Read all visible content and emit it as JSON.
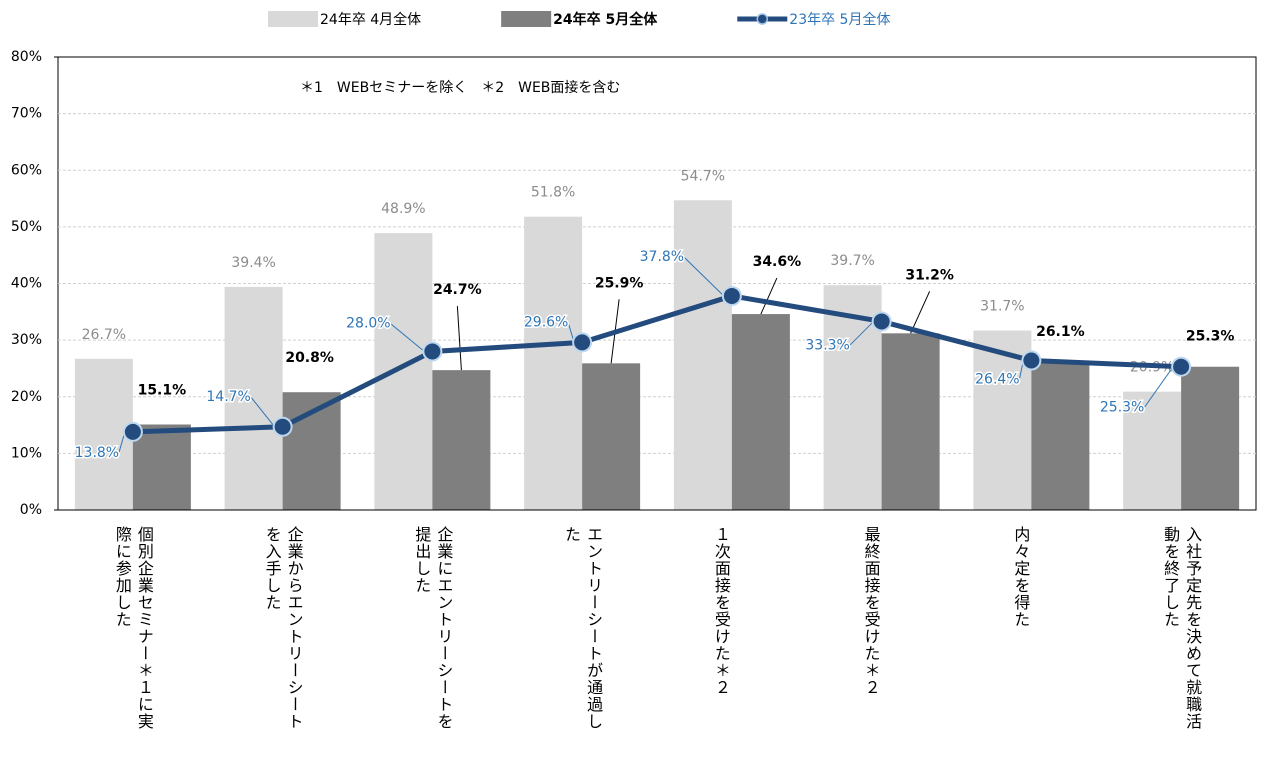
{
  "chart_data": {
    "type": "bar_line",
    "annotation": "＊1　WEBセミナーを除く　＊2　WEB面接を含む",
    "categories": [
      "個別企業セミナー＊１に実際に参加した",
      "企業からエントリーシートを入手した",
      "企業にエントリーシートを提出した",
      "エントリーシートが通過した",
      "１次面接を受けた＊２",
      "最終面接を受けた＊２",
      "内々定を得た",
      "入社予定先を決めて就職活動を終了した"
    ],
    "series": [
      {
        "name": "24年卒 4月全体",
        "type": "bar",
        "color": "#d9d9d9",
        "label_color": "#8c8c8c",
        "values": [
          26.7,
          39.4,
          48.9,
          51.8,
          54.7,
          39.7,
          31.7,
          20.9
        ],
        "value_labels": [
          "26.7%",
          "39.4%",
          "48.9%",
          "51.8%",
          "54.7%",
          "39.7%",
          "31.7%",
          "20.9%"
        ]
      },
      {
        "name": "24年卒 5月全体",
        "type": "bar",
        "color": "#7f7f7f",
        "label_color": "#000000",
        "values": [
          15.1,
          20.8,
          24.7,
          25.9,
          34.6,
          31.2,
          26.1,
          25.3
        ],
        "value_labels": [
          "15.1%",
          "20.8%",
          "24.7%",
          "25.9%",
          "34.6%",
          "31.2%",
          "26.1%",
          "25.3%"
        ]
      },
      {
        "name": "23年卒 5月全体",
        "type": "line",
        "color": "#244b7d",
        "label_color": "#2e75b6",
        "values": [
          13.8,
          14.7,
          28.0,
          29.6,
          37.8,
          33.3,
          26.4,
          25.3
        ],
        "value_labels": [
          "13.8%",
          "14.7%",
          "28.0%",
          "29.6%",
          "37.8%",
          "33.3%",
          "26.4%",
          "25.3%"
        ]
      }
    ],
    "ylim": [
      0,
      80
    ],
    "yticks": [
      {
        "value": 0,
        "label": "0%"
      },
      {
        "value": 10,
        "label": "10%"
      },
      {
        "value": 20,
        "label": "20%"
      },
      {
        "value": 30,
        "label": "30%"
      },
      {
        "value": 40,
        "label": "40%"
      },
      {
        "value": 50,
        "label": "50%"
      },
      {
        "value": 60,
        "label": "60%"
      },
      {
        "value": 70,
        "label": "70%"
      },
      {
        "value": 80,
        "label": "80%"
      }
    ],
    "grid": true
  }
}
